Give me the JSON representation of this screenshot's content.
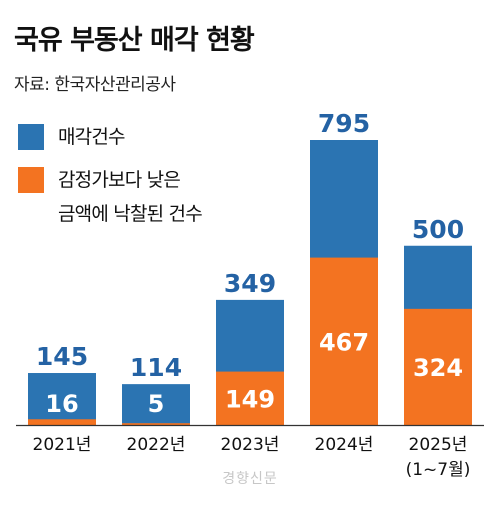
{
  "title": "국유 부동산 매각 현황",
  "source": "자료: 한국자산관리공사",
  "watermark": "경향신문",
  "colors": {
    "blue": "#2b74b2",
    "orange": "#f37321",
    "total_label": "#2462a4",
    "inner_label": "#ffffff"
  },
  "chart_data": {
    "type": "bar",
    "stacked": "overlay",
    "categories": [
      "2021년",
      "2022년",
      "2023년",
      "2024년",
      "2025년"
    ],
    "category_sublabels": [
      "",
      "",
      "",
      "",
      "(1~7월)"
    ],
    "series": [
      {
        "name": "매각건수",
        "values": [
          145,
          114,
          349,
          795,
          500
        ],
        "color": "#2b74b2"
      },
      {
        "name": "감정가보다 낮은 금액에 낙찰된 건수",
        "values": [
          16,
          5,
          149,
          467,
          324
        ],
        "color": "#f37321"
      }
    ],
    "legend": [
      {
        "lines": [
          "매각건수"
        ],
        "color": "#2b74b2"
      },
      {
        "lines": [
          "감정가보다 낮은",
          "금액에 낙찰된 건수"
        ],
        "color": "#f37321"
      }
    ],
    "legend_position": "top-left",
    "ylim": [
      0,
      795
    ],
    "grid": false
  }
}
